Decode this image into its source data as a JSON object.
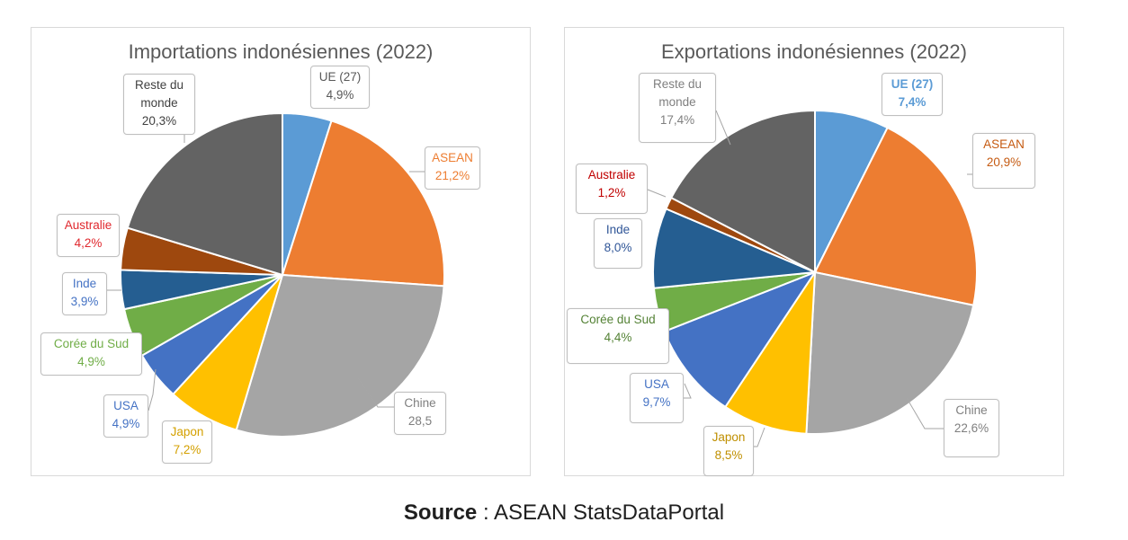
{
  "source": {
    "prefix": "Source",
    "text": " : ASEAN StatsDataPortal"
  },
  "chart_data": [
    {
      "type": "pie",
      "title": "Importations indonésiennes (2022)",
      "slices": [
        {
          "name": "UE (27)",
          "value_label": "4,9%",
          "value": 4.9,
          "color": "#5b9bd5",
          "label_color": "#595959"
        },
        {
          "name": "ASEAN",
          "value_label": "21,2%",
          "value": 21.2,
          "color": "#ed7d31",
          "label_color": "#ed7d31"
        },
        {
          "name": "Chine",
          "value_label": "28,5",
          "value": 28.5,
          "color": "#a5a5a5",
          "label_color": "#7f7f7f"
        },
        {
          "name": "Japon",
          "value_label": "7,2%",
          "value": 7.2,
          "color": "#ffc000",
          "label_color": "#d4a000"
        },
        {
          "name": "USA",
          "value_label": "4,9%",
          "value": 4.9,
          "color": "#4472c4",
          "label_color": "#4472c4"
        },
        {
          "name": "Corée du Sud",
          "value_label": "4,9%",
          "value": 4.9,
          "color": "#70ad47",
          "label_color": "#70ad47"
        },
        {
          "name": "Inde",
          "value_label": "3,9%",
          "value": 3.9,
          "color": "#255e91",
          "label_color": "#4472c4"
        },
        {
          "name": "Australie",
          "value_label": "4,2%",
          "value": 4.2,
          "color": "#9e480e",
          "label_color": "#e0282e"
        },
        {
          "name": "Reste du monde",
          "value_label": "20,3%",
          "value": 20.3,
          "color": "#636363",
          "label_color": "#404040"
        }
      ]
    },
    {
      "type": "pie",
      "title": "Exportations indonésiennes (2022)",
      "slices": [
        {
          "name": "UE (27)",
          "value_label": "7,4%",
          "value": 7.4,
          "color": "#5b9bd5",
          "label_color": "#5b9bd5"
        },
        {
          "name": "ASEAN",
          "value_label": "20,9%",
          "value": 20.9,
          "color": "#ed7d31",
          "label_color": "#c55a11"
        },
        {
          "name": "Chine",
          "value_label": "22,6%",
          "value": 22.6,
          "color": "#a5a5a5",
          "label_color": "#7f7f7f"
        },
        {
          "name": "Japon",
          "value_label": "8,5%",
          "value": 8.5,
          "color": "#ffc000",
          "label_color": "#bf8f00"
        },
        {
          "name": "USA",
          "value_label": "9,7%",
          "value": 9.7,
          "color": "#4472c4",
          "label_color": "#4472c4"
        },
        {
          "name": "Corée du Sud",
          "value_label": "4,4%",
          "value": 4.4,
          "color": "#70ad47",
          "label_color": "#548235"
        },
        {
          "name": "Inde",
          "value_label": "8,0%",
          "value": 8.0,
          "color": "#255e91",
          "label_color": "#2f5597"
        },
        {
          "name": "Australie",
          "value_label": "1,2%",
          "value": 1.2,
          "color": "#9e480e",
          "label_color": "#c00000"
        },
        {
          "name": "Reste du monde",
          "value_label": "17,4%",
          "value": 17.4,
          "color": "#636363",
          "label_color": "#7f7f7f"
        }
      ]
    }
  ]
}
